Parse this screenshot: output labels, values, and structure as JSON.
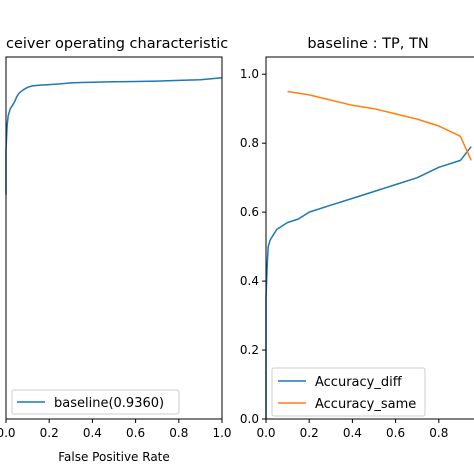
{
  "chart_data": [
    {
      "type": "line",
      "title": "Receiver operating characteristic",
      "title_visible": "ceiver operating characteristic",
      "xlabel": "False Positive Rate",
      "ylabel": "",
      "xlim": [
        0,
        1
      ],
      "ylim": [
        0,
        1.05
      ],
      "x_ticks": [
        0.0,
        0.2,
        0.4,
        0.6,
        0.8,
        1.0
      ],
      "x_tick_labels": [
        "0.0",
        "0.2",
        "0.4",
        "0.6",
        "0.8",
        "1.0"
      ],
      "grid": false,
      "legend_position": "lower-right",
      "series": [
        {
          "name": "baseline(0.9360)",
          "color": "#1f77b4",
          "x": [
            0.0,
            0.0,
            0.005,
            0.01,
            0.02,
            0.03,
            0.04,
            0.05,
            0.06,
            0.08,
            0.1,
            0.12,
            0.15,
            0.2,
            0.25,
            0.3,
            0.35,
            0.4,
            0.5,
            0.6,
            0.7,
            0.8,
            0.9,
            0.95,
            1.0
          ],
          "y": [
            0.65,
            0.78,
            0.85,
            0.88,
            0.9,
            0.91,
            0.92,
            0.935,
            0.945,
            0.955,
            0.962,
            0.966,
            0.968,
            0.97,
            0.972,
            0.975,
            0.976,
            0.977,
            0.978,
            0.979,
            0.98,
            0.982,
            0.984,
            0.987,
            0.99
          ]
        }
      ]
    },
    {
      "type": "line",
      "title": "baseline : TP, TN",
      "xlabel": "",
      "ylabel": "",
      "xlim": [
        0,
        1
      ],
      "ylim": [
        0,
        1.05
      ],
      "x_ticks": [
        0.0,
        0.2,
        0.4,
        0.6,
        0.8
      ],
      "x_tick_labels": [
        "0.0",
        "0.2",
        "0.4",
        "0.6",
        "0.8"
      ],
      "y_ticks": [
        0.0,
        0.2,
        0.4,
        0.6,
        0.8,
        1.0
      ],
      "y_tick_labels": [
        "0.0",
        "0.2",
        "0.4",
        "0.6",
        "0.8",
        "1.0"
      ],
      "grid": false,
      "legend_position": "lower-left",
      "series": [
        {
          "name": "Accuracy_diff",
          "color": "#1f77b4",
          "x": [
            0.0,
            0.0,
            0.005,
            0.01,
            0.02,
            0.05,
            0.1,
            0.15,
            0.2,
            0.3,
            0.4,
            0.5,
            0.6,
            0.7,
            0.8,
            0.9,
            0.95
          ],
          "y": [
            0.0,
            0.35,
            0.44,
            0.5,
            0.52,
            0.55,
            0.57,
            0.58,
            0.6,
            0.62,
            0.64,
            0.66,
            0.68,
            0.7,
            0.73,
            0.75,
            0.79
          ]
        },
        {
          "name": "Accuracy_same",
          "color": "#ff7f0e",
          "x": [
            0.1,
            0.2,
            0.3,
            0.4,
            0.5,
            0.6,
            0.7,
            0.8,
            0.9,
            0.95
          ],
          "y": [
            0.95,
            0.94,
            0.925,
            0.91,
            0.9,
            0.885,
            0.87,
            0.85,
            0.82,
            0.75
          ]
        }
      ]
    }
  ]
}
